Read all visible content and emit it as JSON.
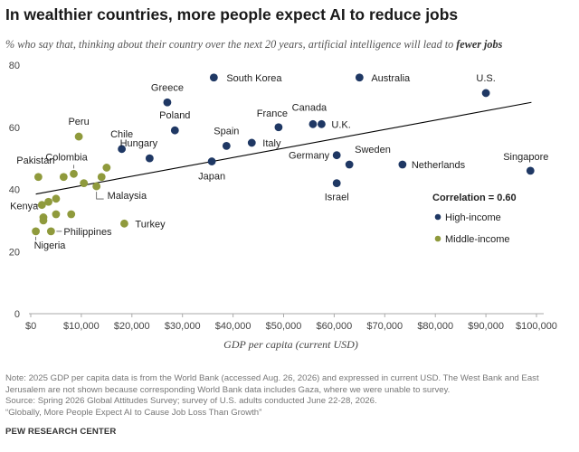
{
  "title": "In wealthier countries, more people expect AI to reduce jobs",
  "subtitle_main": "% who say that, thinking about their country over the next 20 years, artificial intelligence will lead to ",
  "subtitle_emph": "fewer jobs",
  "colors": {
    "high": "#1f3864",
    "middle": "#8f9a3c",
    "trend": "#000000",
    "axis": "#aaaaaa"
  },
  "chart_data": {
    "type": "scatter",
    "xlabel": "GDP per capita (current USD)",
    "xlim": [
      0,
      100000
    ],
    "ylim": [
      0,
      80
    ],
    "xticks": [
      0,
      10000,
      20000,
      30000,
      40000,
      50000,
      60000,
      70000,
      80000,
      90000,
      100000
    ],
    "xtick_labels": [
      "$0",
      "$10,000",
      "$20,000",
      "$30,000",
      "$40,000",
      "$50,000",
      "$60,000",
      "$70,000",
      "$80,000",
      "$90,000",
      "$100,000"
    ],
    "yticks": [
      0,
      20,
      40,
      60,
      80
    ],
    "ytick_labels": [
      "0",
      "20",
      "40",
      "60",
      "80"
    ],
    "trend_line": {
      "x": [
        1000,
        99000
      ],
      "y": [
        38.5,
        68
      ]
    },
    "correlation_label": "Correlation = 0.60",
    "legend": [
      {
        "name": "High-income",
        "group": "high"
      },
      {
        "name": "Middle-income",
        "group": "middle"
      }
    ],
    "points": [
      {
        "label": "South Korea",
        "x": 36200,
        "y": 76,
        "group": "high"
      },
      {
        "label": "Australia",
        "x": 65000,
        "y": 76,
        "group": "high"
      },
      {
        "label": "U.S.",
        "x": 90000,
        "y": 71,
        "group": "high"
      },
      {
        "label": "Greece",
        "x": 27000,
        "y": 68,
        "group": "high"
      },
      {
        "label": "Poland",
        "x": 28500,
        "y": 59,
        "group": "high"
      },
      {
        "label": "France",
        "x": 49000,
        "y": 60,
        "group": "high"
      },
      {
        "label": "Canada",
        "x": 55800,
        "y": 61,
        "group": "high"
      },
      {
        "label": "U.K.",
        "x": 57500,
        "y": 61,
        "group": "high"
      },
      {
        "label": "Chile",
        "x": 18000,
        "y": 53,
        "group": "high"
      },
      {
        "label": "Spain",
        "x": 38700,
        "y": 54,
        "group": "high"
      },
      {
        "label": "Italy",
        "x": 43700,
        "y": 55,
        "group": "high"
      },
      {
        "label": "Hungary",
        "x": 23500,
        "y": 50,
        "group": "high"
      },
      {
        "label": "Japan",
        "x": 35800,
        "y": 49,
        "group": "high"
      },
      {
        "label": "Germany",
        "x": 60500,
        "y": 51,
        "group": "high"
      },
      {
        "label": "Sweden",
        "x": 63000,
        "y": 48,
        "group": "high"
      },
      {
        "label": "Netherlands",
        "x": 73500,
        "y": 48,
        "group": "high"
      },
      {
        "label": "Singapore",
        "x": 98800,
        "y": 46,
        "group": "high"
      },
      {
        "label": "Israel",
        "x": 60500,
        "y": 42,
        "group": "high"
      },
      {
        "label": "Peru",
        "x": 9500,
        "y": 57,
        "group": "middle"
      },
      {
        "label": "Colombia",
        "x": 8500,
        "y": 45,
        "group": "middle"
      },
      {
        "label": "Pakistan",
        "x": 1500,
        "y": 44,
        "group": "middle"
      },
      {
        "label": "",
        "x": 6500,
        "y": 44,
        "group": "middle"
      },
      {
        "label": "",
        "x": 15000,
        "y": 47,
        "group": "middle"
      },
      {
        "label": "",
        "x": 14000,
        "y": 44,
        "group": "middle"
      },
      {
        "label": "",
        "x": 10500,
        "y": 42,
        "group": "middle"
      },
      {
        "label": "Malaysia",
        "x": 13000,
        "y": 41,
        "group": "middle"
      },
      {
        "label": "",
        "x": 5000,
        "y": 37,
        "group": "middle"
      },
      {
        "label": "",
        "x": 3500,
        "y": 36,
        "group": "middle"
      },
      {
        "label": "Kenya",
        "x": 2200,
        "y": 35,
        "group": "middle"
      },
      {
        "label": "",
        "x": 5000,
        "y": 32,
        "group": "middle"
      },
      {
        "label": "",
        "x": 8000,
        "y": 32,
        "group": "middle"
      },
      {
        "label": "",
        "x": 2500,
        "y": 31,
        "group": "middle"
      },
      {
        "label": "",
        "x": 2500,
        "y": 30,
        "group": "middle"
      },
      {
        "label": "Turkey",
        "x": 18500,
        "y": 29,
        "group": "middle"
      },
      {
        "label": "Philippines",
        "x": 4000,
        "y": 26.5,
        "group": "middle"
      },
      {
        "label": "Nigeria",
        "x": 1000,
        "y": 26.5,
        "group": "middle"
      }
    ]
  },
  "note_lines": [
    "Note: 2025 GDP per capita data is from the World Bank (accessed Aug. 26, 2026) and expressed in current USD. The West Bank and East",
    "Jerusalem are not shown because corresponding World Bank data includes Gaza, where we were unable to survey.",
    "Source: Spring 2026 Global Attitudes Survey; survey of U.S. adults conducted June 22-28, 2026.",
    "“Globally, More People Expect AI to Cause Job Loss Than Growth”"
  ],
  "credit": "PEW RESEARCH CENTER"
}
